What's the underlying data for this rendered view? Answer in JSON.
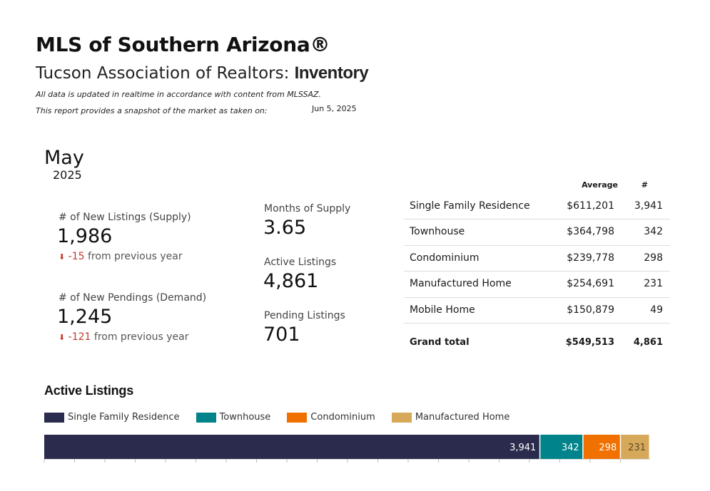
{
  "header": {
    "title": "MLS of Southern Arizona®",
    "subtitle_prefix": "Tucson Association of Realtors:",
    "subtitle_strong": "Inventory",
    "note_line1": "All data is updated in realtime in accordance with content from MLSSAZ.",
    "note_line2": "This report provides a snapshot of the market as taken on:",
    "snapshot_date": "Jun 5, 2025"
  },
  "period": {
    "month": "May",
    "year": "2025"
  },
  "kpis": {
    "new_listings": {
      "label": "# of New Listings (Supply)",
      "value": "1,986",
      "delta": "-15",
      "delta_suffix": "from previous year"
    },
    "new_pendings": {
      "label": "# of New Pendings (Demand)",
      "value": "1,245",
      "delta": "-121",
      "delta_suffix": "from previous year"
    },
    "months_supply": {
      "label": "Months of Supply",
      "value": "3.65"
    },
    "active_listings": {
      "label": "Active Listings",
      "value": "4,861"
    },
    "pending_listings": {
      "label": "Pending Listings",
      "value": "701"
    }
  },
  "table": {
    "col_average": "Average",
    "col_count": "#",
    "rows": [
      {
        "type": "Single Family Residence",
        "average": "$611,201",
        "count": "3,941"
      },
      {
        "type": "Townhouse",
        "average": "$364,798",
        "count": "342"
      },
      {
        "type": "Condominium",
        "average": "$239,778",
        "count": "298"
      },
      {
        "type": "Manufactured Home",
        "average": "$254,691",
        "count": "231"
      },
      {
        "type": "Mobile Home",
        "average": "$150,879",
        "count": "49"
      }
    ],
    "total": {
      "type": "Grand total",
      "average": "$549,513",
      "count": "4,861"
    }
  },
  "chart_title": "Active Listings",
  "chart_data": {
    "type": "bar",
    "orientation": "horizontal-stacked",
    "title": "Active Listings",
    "series": [
      {
        "name": "Single Family Residence",
        "value": 3941,
        "label": "3,941",
        "color": "#2b2b4d"
      },
      {
        "name": "Townhouse",
        "value": 342,
        "label": "342",
        "color": "#00838a"
      },
      {
        "name": "Condominium",
        "value": 298,
        "label": "298",
        "color": "#f07000"
      },
      {
        "name": "Manufactured Home",
        "value": 231,
        "label": "231",
        "color": "#d6a85a"
      }
    ],
    "legend": "top-left",
    "grid": true
  },
  "colors": {
    "delta_down": "#c0392b"
  },
  "icons": {
    "delta_down": "down-arrow-icon"
  }
}
